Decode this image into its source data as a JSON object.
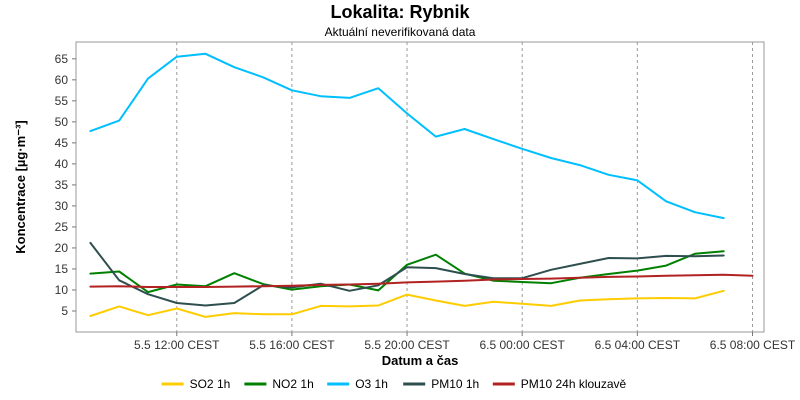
{
  "chart_data": {
    "type": "line",
    "title": "Lokalita: Rybnik",
    "subtitle": "Aktuální neverifikovaná data",
    "xlabel": "Datum a čas",
    "ylabel": "Koncentrace [µg·m⁻³]",
    "x": [
      9,
      10,
      11,
      12,
      13,
      14,
      15,
      16,
      17,
      18,
      19,
      20,
      21,
      22,
      23,
      24,
      25,
      26,
      27,
      28,
      29,
      30,
      31,
      32
    ],
    "x_ticks": [
      {
        "value": 12,
        "label": "5.5 12:00 CEST"
      },
      {
        "value": 16,
        "label": "5.5 16:00 CEST"
      },
      {
        "value": 20,
        "label": "5.5 20:00 CEST"
      },
      {
        "value": 24,
        "label": "6.5 00:00 CEST"
      },
      {
        "value": 28,
        "label": "6.5 04:00 CEST"
      },
      {
        "value": 32,
        "label": "6.5 08:00 CEST"
      }
    ],
    "xlim": [
      8.5,
      32.4
    ],
    "ylim": [
      0,
      69
    ],
    "y_ticks": [
      5,
      10,
      15,
      20,
      25,
      30,
      35,
      40,
      45,
      50,
      55,
      60,
      65
    ],
    "grid": "vertical dashed at x ticks",
    "legend_position": "bottom",
    "series": [
      {
        "name": "SO2 1h",
        "color": "#FFCC00",
        "values": [
          3.8,
          6.1,
          4.0,
          5.6,
          3.6,
          4.5,
          4.2,
          4.2,
          6.2,
          6.1,
          6.3,
          8.9,
          7.5,
          6.2,
          7.2,
          6.7,
          6.2,
          7.5,
          7.8,
          8.0,
          8.1,
          8.0,
          9.8,
          null
        ]
      },
      {
        "name": "NO2 1h",
        "color": "#008000",
        "values": [
          13.9,
          14.4,
          9.5,
          11.3,
          10.9,
          14.0,
          11.4,
          10.1,
          10.9,
          11.3,
          9.9,
          16.0,
          18.4,
          13.9,
          12.2,
          11.9,
          11.6,
          12.9,
          13.8,
          14.6,
          15.8,
          18.6,
          19.2,
          null
        ]
      },
      {
        "name": "O3 1h",
        "color": "#00BFFF",
        "values": [
          47.8,
          50.3,
          60.3,
          65.5,
          66.2,
          63.0,
          60.6,
          57.5,
          56.1,
          55.7,
          58.0,
          52.0,
          46.5,
          48.3,
          45.9,
          43.6,
          41.4,
          39.7,
          37.4,
          36.1,
          31.1,
          28.5,
          27.1,
          null
        ]
      },
      {
        "name": "PM10 1h",
        "color": "#2F4F4F",
        "values": [
          21.2,
          12.3,
          9.0,
          6.9,
          6.3,
          6.9,
          11.1,
          10.6,
          11.5,
          9.8,
          11.1,
          15.4,
          15.2,
          13.8,
          12.8,
          12.8,
          14.8,
          16.2,
          17.6,
          17.5,
          18.1,
          18.0,
          18.2,
          null
        ]
      },
      {
        "name": "PM10 24h klouzavě",
        "color": "#B22222",
        "values": [
          10.8,
          10.9,
          10.7,
          10.7,
          10.7,
          10.8,
          10.9,
          11.0,
          11.2,
          11.3,
          11.5,
          11.8,
          12.0,
          12.2,
          12.5,
          12.6,
          12.7,
          12.9,
          13.1,
          13.2,
          13.4,
          13.5,
          13.6,
          13.4
        ]
      }
    ]
  }
}
